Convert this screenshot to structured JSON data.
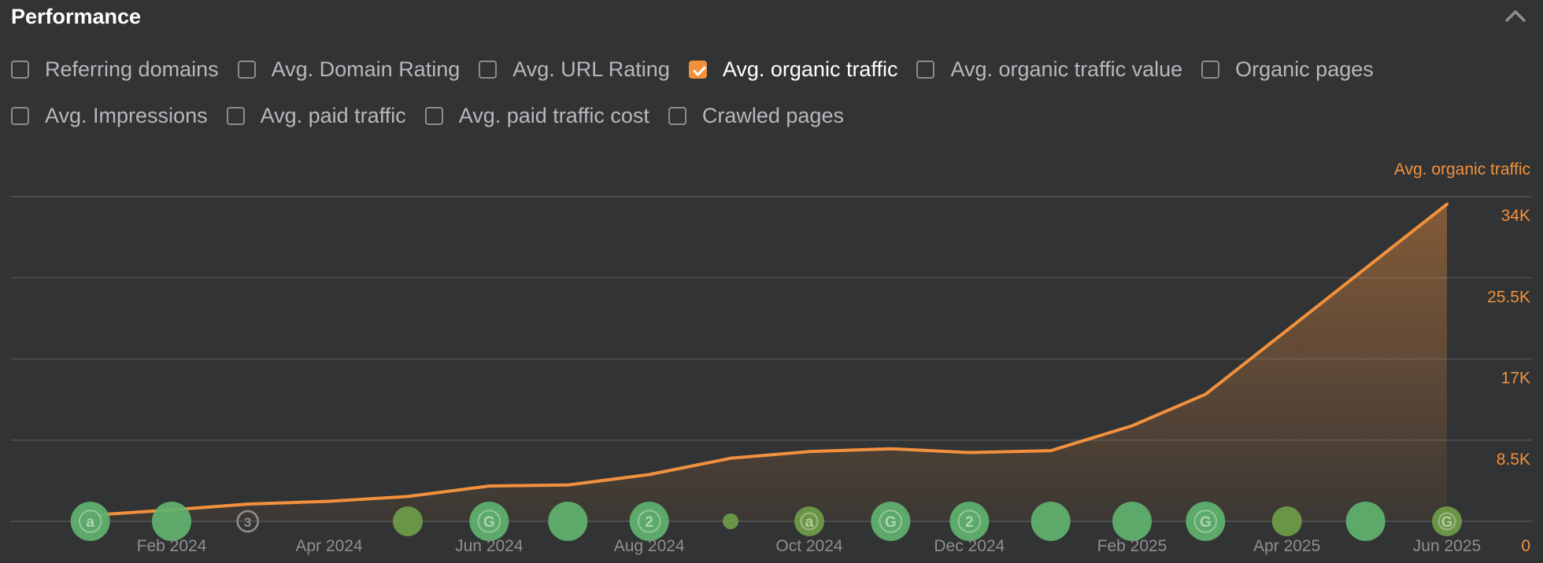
{
  "header": {
    "title": "Performance",
    "collapse_icon": "chevron-up-icon"
  },
  "filters": {
    "row1": [
      {
        "label": "Referring domains",
        "checked": false
      },
      {
        "label": "Avg. Domain Rating",
        "checked": false
      },
      {
        "label": "Avg. URL Rating",
        "checked": false
      },
      {
        "label": "Avg. organic traffic",
        "checked": true
      },
      {
        "label": "Avg. organic traffic value",
        "checked": false
      },
      {
        "label": "Organic pages",
        "checked": false
      }
    ],
    "row2": [
      {
        "label": "Avg. Impressions",
        "checked": false
      },
      {
        "label": "Avg. paid traffic",
        "checked": false
      },
      {
        "label": "Avg. paid traffic cost",
        "checked": false
      },
      {
        "label": "Crawled pages",
        "checked": false
      }
    ]
  },
  "colors": {
    "accent": "#f2913d",
    "grid": "#4a4b4d",
    "marker_green": "#5fb36f",
    "marker_olive": "#6f9d48"
  },
  "chart_data": {
    "type": "area",
    "series": [
      {
        "name": "Avg. organic traffic",
        "x": [
          "2024-01-01",
          "2024-02-01",
          "2024-03-01",
          "2024-04-01",
          "2024-05-01",
          "2024-06-01",
          "2024-07-01",
          "2024-08-01",
          "2024-09-01",
          "2024-10-01",
          "2024-11-01",
          "2024-12-01",
          "2025-01-01",
          "2025-02-01",
          "2025-03-01",
          "2025-04-01",
          "2025-05-01",
          "2025-06-01"
        ],
        "values": [
          700,
          1200,
          1800,
          2100,
          2600,
          3700,
          3800,
          4900,
          6600,
          7300,
          7600,
          7200,
          7400,
          10000,
          13300,
          20000,
          26500,
          33200
        ]
      }
    ],
    "y_axis": {
      "position": "right",
      "ticks": [
        0,
        8500,
        17000,
        25500,
        34000
      ],
      "tick_labels": [
        "0",
        "8.5K",
        "17K",
        "25.5K",
        "34K"
      ],
      "ylim": [
        0,
        34000
      ]
    },
    "x_axis": {
      "tick_labels": [
        "Feb 2024",
        "Apr 2024",
        "Jun 2024",
        "Aug 2024",
        "Oct 2024",
        "Dec 2024",
        "Feb 2025",
        "Apr 2025",
        "Jun 2025"
      ],
      "tick_dates": [
        "2024-02-01",
        "2024-04-01",
        "2024-06-01",
        "2024-08-01",
        "2024-10-01",
        "2024-12-01",
        "2025-02-01",
        "2025-04-01",
        "2025-06-01"
      ]
    },
    "grid": true,
    "markers": [
      {
        "date": "2024-01-01",
        "kind": "green",
        "label": "a",
        "size": "large"
      },
      {
        "date": "2024-02-01",
        "kind": "green",
        "label": "",
        "size": "large"
      },
      {
        "date": "2024-03-01",
        "kind": "outline",
        "label": "3",
        "size": "small"
      },
      {
        "date": "2024-05-01",
        "kind": "olive",
        "label": "",
        "size": "medium"
      },
      {
        "date": "2024-06-01",
        "kind": "green",
        "label": "G",
        "size": "large"
      },
      {
        "date": "2024-07-01",
        "kind": "green",
        "label": "",
        "size": "large"
      },
      {
        "date": "2024-08-01",
        "kind": "green",
        "label": "2",
        "size": "large"
      },
      {
        "date": "2024-09-01",
        "kind": "olive",
        "label": "",
        "size": "tiny"
      },
      {
        "date": "2024-10-01",
        "kind": "olive",
        "label": "a",
        "size": "medium"
      },
      {
        "date": "2024-11-01",
        "kind": "green",
        "label": "G",
        "size": "large"
      },
      {
        "date": "2024-12-01",
        "kind": "green",
        "label": "2",
        "size": "large"
      },
      {
        "date": "2025-01-01",
        "kind": "green",
        "label": "",
        "size": "large"
      },
      {
        "date": "2025-02-01",
        "kind": "green",
        "label": "",
        "size": "large"
      },
      {
        "date": "2025-03-01",
        "kind": "green",
        "label": "G",
        "size": "large"
      },
      {
        "date": "2025-04-01",
        "kind": "olive",
        "label": "",
        "size": "medium"
      },
      {
        "date": "2025-05-01",
        "kind": "green",
        "label": "",
        "size": "large"
      },
      {
        "date": "2025-06-01",
        "kind": "olive",
        "label": "G",
        "size": "medium"
      }
    ]
  }
}
